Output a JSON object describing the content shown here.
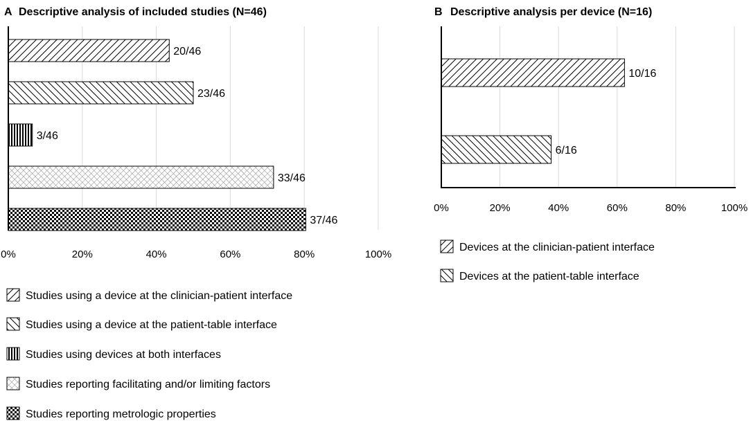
{
  "chart_data": [
    {
      "type": "bar",
      "orientation": "horizontal",
      "panel_letter": "A",
      "title": "Descriptive analysis of included studies (N=46)",
      "categories": [
        "Studies using a device at the clinician-patient interface",
        "Studies using a device at the patient-table interface",
        "Studies using devices at both interfaces",
        "Studies reporting facilitating and/or limiting factors",
        "Studies reporting metrologic properties"
      ],
      "values": [
        43.5,
        50.0,
        6.5,
        71.7,
        80.4
      ],
      "data_labels": [
        "20/46",
        "23/46",
        "3/46",
        "33/46",
        "37/46"
      ],
      "patterns": [
        "diag-right",
        "diag-left",
        "vertical",
        "crosshatch",
        "checker"
      ],
      "xlim": [
        0,
        100
      ],
      "xticks": [
        "0%",
        "20%",
        "40%",
        "60%",
        "80%",
        "100%"
      ],
      "grid": true,
      "legend_position": "bottom"
    },
    {
      "type": "bar",
      "orientation": "horizontal",
      "panel_letter": "B",
      "title": "Descriptive analysis per device (N=16)",
      "categories": [
        "Devices at the clinician-patient interface",
        "Devices at the patient-table interface"
      ],
      "values": [
        62.5,
        37.5
      ],
      "data_labels": [
        "10/16",
        "6/16"
      ],
      "patterns": [
        "diag-right",
        "diag-left"
      ],
      "xlim": [
        0,
        100
      ],
      "xticks": [
        "0%",
        "20%",
        "40%",
        "60%",
        "80%",
        "100%"
      ],
      "grid": true,
      "legend_position": "bottom"
    }
  ]
}
